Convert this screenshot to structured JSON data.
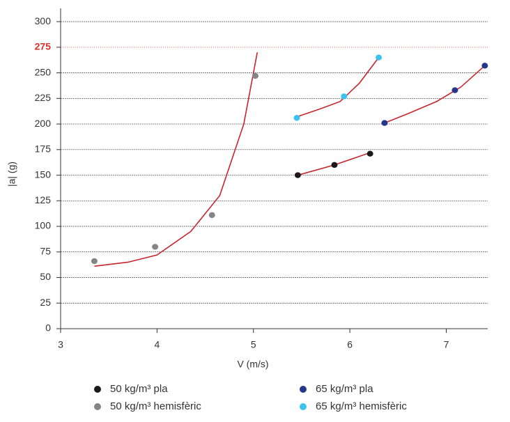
{
  "chart_data": {
    "type": "scatter",
    "xlabel": "V (m/s)",
    "ylabel": "|a| (g)",
    "xlim": [
      3,
      7.43
    ],
    "xticks": [
      3,
      4,
      5,
      6,
      7
    ],
    "ylim": [
      0,
      313
    ],
    "yticks": [
      0,
      25,
      50,
      75,
      100,
      125,
      150,
      175,
      200,
      225,
      250,
      275,
      300
    ],
    "grid": true,
    "highlight_value": 275,
    "highlight_color": "#d9322b",
    "series": [
      {
        "name": "50 kg/m³ pla",
        "color": "#1a1a1a",
        "x": [
          5.46,
          5.84,
          6.21
        ],
        "values": [
          150,
          160,
          171
        ]
      },
      {
        "name": "50 kg/m³ hemisfèric",
        "color": "#858585",
        "x": [
          3.35,
          3.98,
          4.57,
          5.02
        ],
        "values": [
          66,
          80,
          111,
          247
        ]
      },
      {
        "name": "65 kg/m³ pla",
        "color": "#23388a",
        "x": [
          6.36,
          7.09,
          7.4
        ],
        "values": [
          201,
          233,
          257
        ]
      },
      {
        "name": "65 kg/m³ hemisfèric",
        "color": "#3cc2ee",
        "x": [
          5.45,
          5.94,
          6.3
        ],
        "values": [
          206,
          227,
          265
        ]
      }
    ],
    "fit_color": "#c8252c",
    "fits": [
      {
        "x": [
          3.35,
          3.7,
          4.0,
          4.35,
          4.65,
          4.9,
          5.04
        ],
        "values": [
          61,
          65,
          72,
          95,
          130,
          200,
          270
        ]
      },
      {
        "x": [
          5.45,
          5.7,
          5.9,
          6.1,
          6.3
        ],
        "values": [
          207,
          215,
          222,
          240,
          265
        ]
      },
      {
        "x": [
          6.36,
          6.6,
          6.9,
          7.15,
          7.4
        ],
        "values": [
          201,
          210,
          222,
          236,
          257
        ]
      },
      {
        "x": [
          5.46,
          5.84,
          6.21
        ],
        "values": [
          150,
          160,
          172
        ]
      }
    ]
  }
}
